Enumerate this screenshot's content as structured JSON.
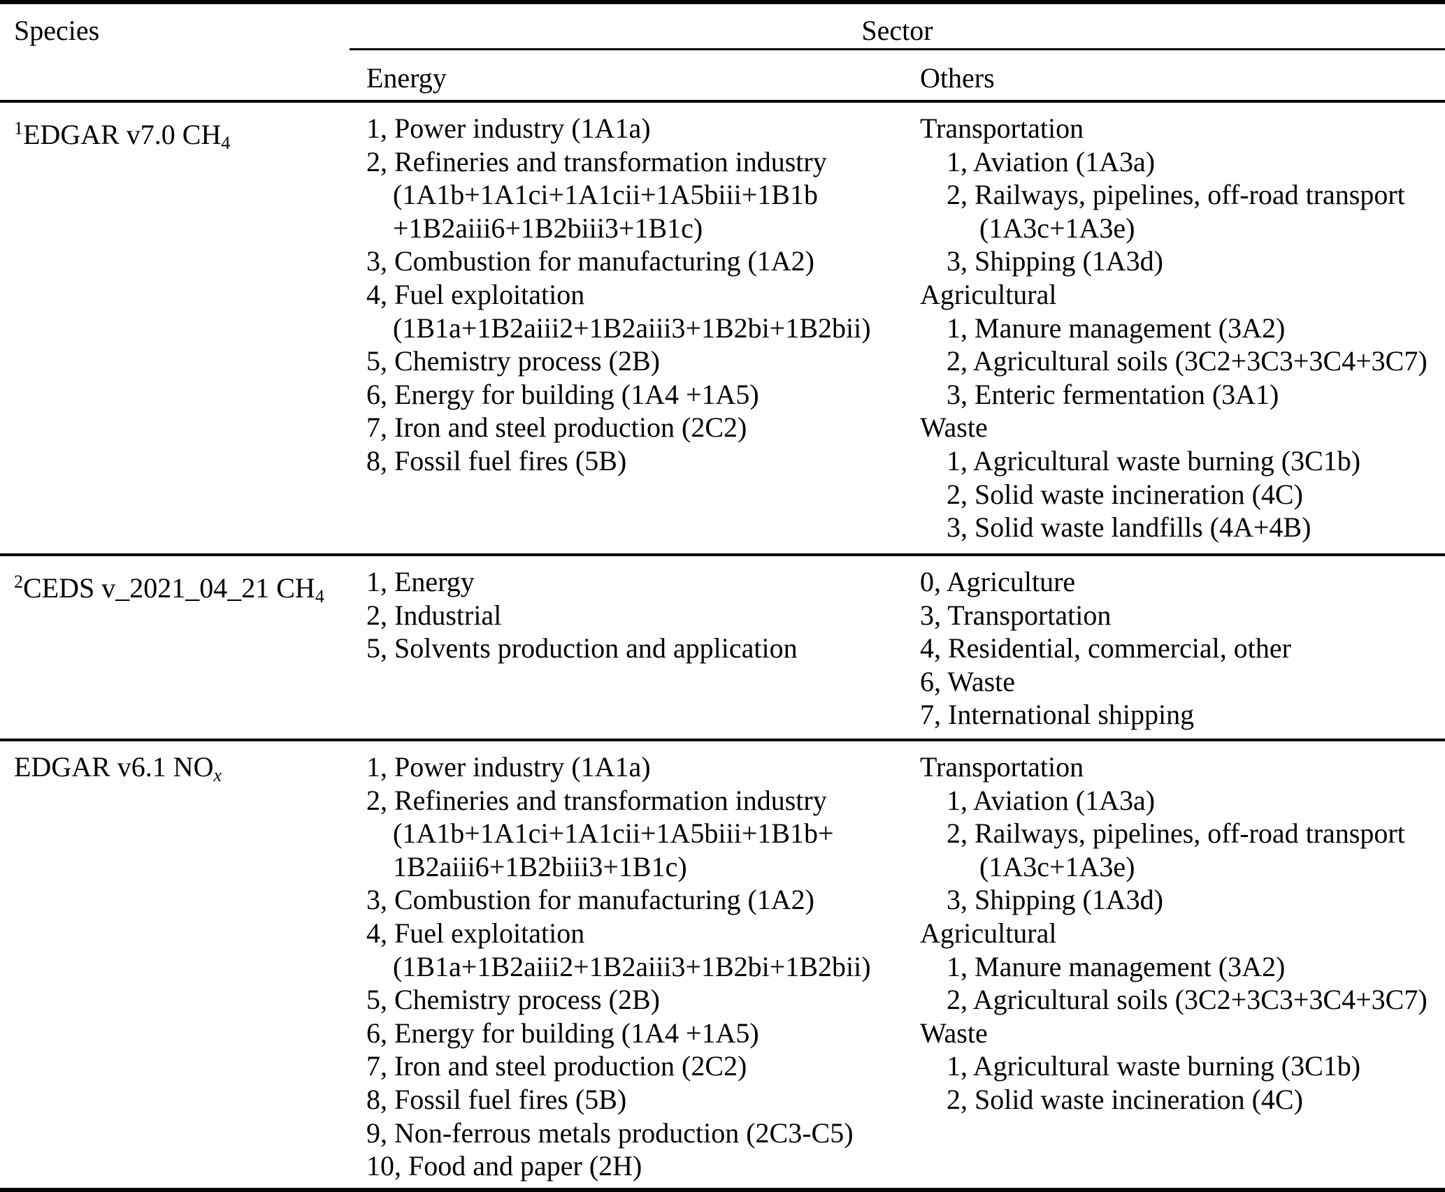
{
  "table": {
    "header": {
      "species": "Species",
      "sector": "Sector",
      "energy": "Energy",
      "others": "Others"
    },
    "rows": [
      {
        "species": {
          "sup": "1",
          "main": "EDGAR v7.0 CH",
          "sub": "4"
        },
        "energy": [
          {
            "text": "1, Power industry (1A1a)",
            "indent": 0
          },
          {
            "text": "2, Refineries and transformation industry",
            "indent": 0
          },
          {
            "text": "(1A1b+1A1ci+1A1cii+1A5biii+1B1b",
            "indent": 1
          },
          {
            "text": "+1B2aiii6+1B2biii3+1B1c)",
            "indent": 1
          },
          {
            "text": "3, Combustion for manufacturing (1A2)",
            "indent": 0
          },
          {
            "text": "4, Fuel exploitation",
            "indent": 0
          },
          {
            "text": "(1B1a+1B2aiii2+1B2aiii3+1B2bi+1B2bii)",
            "indent": 1
          },
          {
            "text": "5, Chemistry process (2B)",
            "indent": 0
          },
          {
            "text": "6, Energy for building (1A4 +1A5)",
            "indent": 0
          },
          {
            "text": "7, Iron and steel production (2C2)",
            "indent": 0
          },
          {
            "text": "8, Fossil fuel fires (5B)",
            "indent": 0
          }
        ],
        "others": [
          {
            "text": "Transportation",
            "indent": 0
          },
          {
            "text": "1, Aviation (1A3a)",
            "indent": 1
          },
          {
            "text": "2, Railways, pipelines, off-road transport",
            "indent": 1
          },
          {
            "text": "(1A3c+1A3e)",
            "indent": 2
          },
          {
            "text": "3, Shipping (1A3d)",
            "indent": 1
          },
          {
            "text": "Agricultural",
            "indent": 0
          },
          {
            "text": "1, Manure management (3A2)",
            "indent": 1
          },
          {
            "text": "2, Agricultural soils (3C2+3C3+3C4+3C7)",
            "indent": 1
          },
          {
            "text": "3, Enteric fermentation (3A1)",
            "indent": 1
          },
          {
            "text": "Waste",
            "indent": 0
          },
          {
            "text": "1, Agricultural waste burning (3C1b)",
            "indent": 1
          },
          {
            "text": "2, Solid waste incineration (4C)",
            "indent": 1
          },
          {
            "text": "3, Solid waste landfills (4A+4B)",
            "indent": 1
          }
        ]
      },
      {
        "species": {
          "sup": "2",
          "main": "CEDS v_2021_04_21 CH",
          "sub": "4"
        },
        "energy": [
          {
            "text": "1, Energy",
            "indent": 0
          },
          {
            "text": "2, Industrial",
            "indent": 0
          },
          {
            "text": "5, Solvents production and application",
            "indent": 0
          }
        ],
        "others": [
          {
            "text": "0, Agriculture",
            "indent": 0
          },
          {
            "text": "3, Transportation",
            "indent": 0
          },
          {
            "text": "4, Residential, commercial, other",
            "indent": 0
          },
          {
            "text": "6, Waste",
            "indent": 0
          },
          {
            "text": "7, International shipping",
            "indent": 0
          }
        ]
      },
      {
        "species": {
          "sup": "",
          "main": "EDGAR v6.1 NO",
          "sub": "x"
        },
        "energy": [
          {
            "text": "1, Power industry (1A1a)",
            "indent": 0
          },
          {
            "text": "2, Refineries and transformation industry",
            "indent": 0
          },
          {
            "text": "(1A1b+1A1ci+1A1cii+1A5biii+1B1b+",
            "indent": 1
          },
          {
            "text": "1B2aiii6+1B2biii3+1B1c)",
            "indent": 1
          },
          {
            "text": "3, Combustion for manufacturing (1A2)",
            "indent": 0
          },
          {
            "text": "4, Fuel exploitation",
            "indent": 0
          },
          {
            "text": "(1B1a+1B2aiii2+1B2aiii3+1B2bi+1B2bii)",
            "indent": 1
          },
          {
            "text": "5, Chemistry process (2B)",
            "indent": 0
          },
          {
            "text": "6, Energy for building (1A4 +1A5)",
            "indent": 0
          },
          {
            "text": "7, Iron and steel production (2C2)",
            "indent": 0
          },
          {
            "text": "8, Fossil fuel fires (5B)",
            "indent": 0
          },
          {
            "text": "9, Non-ferrous metals production (2C3-C5)",
            "indent": 0
          },
          {
            "text": "10, Food and paper (2H)",
            "indent": 0
          }
        ],
        "others": [
          {
            "text": "Transportation",
            "indent": 0
          },
          {
            "text": "1, Aviation (1A3a)",
            "indent": 1
          },
          {
            "text": "2, Railways, pipelines, off-road transport",
            "indent": 1
          },
          {
            "text": "(1A3c+1A3e)",
            "indent": 2
          },
          {
            "text": "3, Shipping (1A3d)",
            "indent": 1
          },
          {
            "text": "Agricultural",
            "indent": 0
          },
          {
            "text": "1, Manure management (3A2)",
            "indent": 1
          },
          {
            "text": "2, Agricultural soils (3C2+3C3+3C4+3C7)",
            "indent": 1
          },
          {
            "text": "Waste",
            "indent": 0
          },
          {
            "text": "1, Agricultural waste burning (3C1b)",
            "indent": 1
          },
          {
            "text": "2, Solid waste incineration (4C)",
            "indent": 1
          }
        ]
      }
    ]
  }
}
